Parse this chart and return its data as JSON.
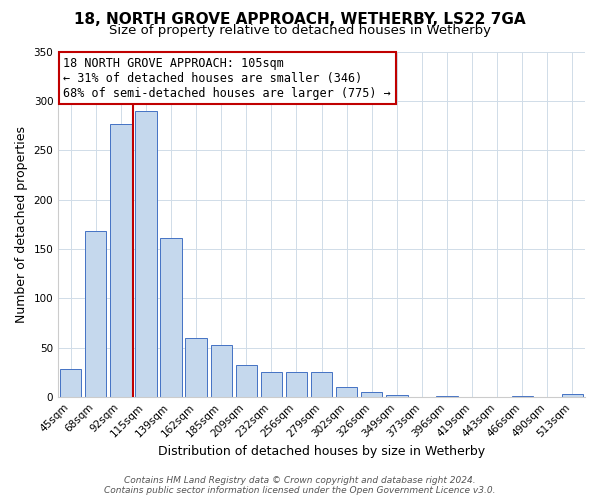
{
  "title": "18, NORTH GROVE APPROACH, WETHERBY, LS22 7GA",
  "subtitle": "Size of property relative to detached houses in Wetherby",
  "xlabel": "Distribution of detached houses by size in Wetherby",
  "ylabel": "Number of detached properties",
  "bar_labels": [
    "45sqm",
    "68sqm",
    "92sqm",
    "115sqm",
    "139sqm",
    "162sqm",
    "185sqm",
    "209sqm",
    "232sqm",
    "256sqm",
    "279sqm",
    "302sqm",
    "326sqm",
    "349sqm",
    "373sqm",
    "396sqm",
    "419sqm",
    "443sqm",
    "466sqm",
    "490sqm",
    "513sqm"
  ],
  "bar_values": [
    29,
    168,
    277,
    290,
    161,
    60,
    53,
    33,
    26,
    26,
    26,
    10,
    5,
    2,
    0,
    1,
    0,
    0,
    1,
    0,
    3
  ],
  "bar_color": "#c5d8ed",
  "bar_edge_color": "#4472c4",
  "vline_x_index": 2.5,
  "vline_color": "#c00000",
  "annotation_title": "18 NORTH GROVE APPROACH: 105sqm",
  "annotation_line1": "← 31% of detached houses are smaller (346)",
  "annotation_line2": "68% of semi-detached houses are larger (775) →",
  "annotation_box_color": "#c00000",
  "ylim": [
    0,
    350
  ],
  "yticks": [
    0,
    50,
    100,
    150,
    200,
    250,
    300,
    350
  ],
  "footer_line1": "Contains HM Land Registry data © Crown copyright and database right 2024.",
  "footer_line2": "Contains public sector information licensed under the Open Government Licence v3.0.",
  "title_fontsize": 11,
  "subtitle_fontsize": 9.5,
  "ylabel_fontsize": 9,
  "xlabel_fontsize": 9,
  "tick_fontsize": 7.5,
  "annotation_fontsize": 8.5,
  "footer_fontsize": 6.5
}
